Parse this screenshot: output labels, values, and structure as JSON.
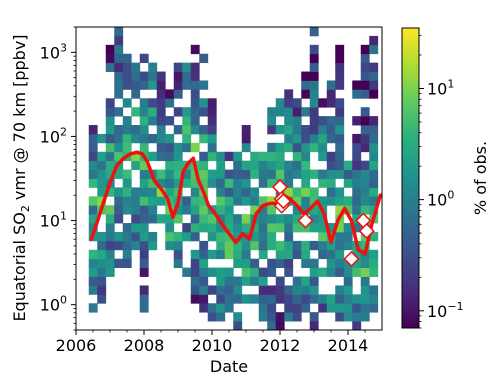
{
  "chart_data": {
    "type": "heatmap",
    "xlabel": "Date",
    "ylabel": "Equatorial SO₂ vmr @ 70 km [ppbv]",
    "xlim": [
      2006.0,
      2015.0
    ],
    "ylim": [
      0.5,
      2000
    ],
    "yscale": "log",
    "x_ticks": [
      {
        "value": 2006,
        "label": "2006"
      },
      {
        "value": 2008,
        "label": "2008"
      },
      {
        "value": 2010,
        "label": "2010"
      },
      {
        "value": 2012,
        "label": "2012"
      },
      {
        "value": 2014,
        "label": "2014"
      }
    ],
    "y_ticks": [
      {
        "value": 1,
        "base": "10",
        "exp": "0"
      },
      {
        "value": 10,
        "base": "10",
        "exp": "1"
      },
      {
        "value": 100,
        "base": "10",
        "exp": "2"
      },
      {
        "value": 1000,
        "base": "10",
        "exp": "3"
      }
    ],
    "colorbar": {
      "label": "% of obs.",
      "scale": "log",
      "range": [
        0.07,
        35
      ],
      "colormap": "viridis",
      "ticks": [
        {
          "value": 0.1,
          "base": "10",
          "exp": "−1"
        },
        {
          "value": 1,
          "base": "10",
          "exp": "0"
        },
        {
          "value": 10,
          "base": "10",
          "exp": "1"
        }
      ]
    },
    "histogram": {
      "description_of_bins": "2D histogram of observations; time bins ~0.25 yr, log-spaced vmr bins",
      "x_start": 2006.4,
      "x_end": 2014.9,
      "active_columns": [
        {
          "x": 2006.5,
          "low": 0.8,
          "high": 150
        },
        {
          "x": 2006.75,
          "low": 1.0,
          "high": 100
        },
        {
          "x": 2007.0,
          "low": 2.0,
          "high": 1300
        },
        {
          "x": 2007.25,
          "low": 2.5,
          "high": 2000
        },
        {
          "x": 2007.5,
          "low": 3.0,
          "high": 1000
        },
        {
          "x": 2007.75,
          "low": 5.0,
          "high": 700
        },
        {
          "x": 2008.0,
          "low": 0.8,
          "high": 1000
        },
        {
          "x": 2008.25,
          "low": 4.0,
          "high": 900
        },
        {
          "x": 2008.5,
          "low": 10.0,
          "high": 600
        },
        {
          "x": 2008.75,
          "low": 5.0,
          "high": 400
        },
        {
          "x": 2009.0,
          "low": 3.0,
          "high": 700
        },
        {
          "x": 2009.25,
          "low": 2.0,
          "high": 800
        },
        {
          "x": 2009.5,
          "low": 1.0,
          "high": 1300
        },
        {
          "x": 2009.75,
          "low": 0.8,
          "high": 900
        },
        {
          "x": 2010.0,
          "low": 0.6,
          "high": 300
        },
        {
          "x": 2010.25,
          "low": 0.7,
          "high": 70
        },
        {
          "x": 2010.5,
          "low": 0.6,
          "high": 60
        },
        {
          "x": 2010.75,
          "low": 0.5,
          "high": 70
        },
        {
          "x": 2011.0,
          "low": 0.8,
          "high": 150
        },
        {
          "x": 2011.25,
          "low": 1.0,
          "high": 70
        },
        {
          "x": 2011.5,
          "low": 0.6,
          "high": 70
        },
        {
          "x": 2011.75,
          "low": 0.5,
          "high": 300
        },
        {
          "x": 2012.0,
          "low": 0.5,
          "high": 300
        },
        {
          "x": 2012.25,
          "low": 0.6,
          "high": 400
        },
        {
          "x": 2012.5,
          "low": 0.7,
          "high": 300
        },
        {
          "x": 2012.75,
          "low": 0.8,
          "high": 600
        },
        {
          "x": 2013.0,
          "low": 0.5,
          "high": 2000
        },
        {
          "x": 2013.25,
          "low": 0.6,
          "high": 300
        },
        {
          "x": 2013.5,
          "low": 0.6,
          "high": 500
        },
        {
          "x": 2013.75,
          "low": 0.7,
          "high": 1300
        },
        {
          "x": 2014.0,
          "low": 0.6,
          "high": 60
        },
        {
          "x": 2014.25,
          "low": 0.5,
          "high": 500
        },
        {
          "x": 2014.5,
          "low": 0.5,
          "high": 1300
        },
        {
          "x": 2014.75,
          "low": 0.8,
          "high": 1500
        }
      ],
      "peak_pct": 35
    },
    "series": [
      {
        "style": "line",
        "color": "#ee1111",
        "x": [
          2006.45,
          2006.6,
          2006.8,
          2007.0,
          2007.2,
          2007.4,
          2007.6,
          2007.8,
          2007.95,
          2008.1,
          2008.3,
          2008.5,
          2008.7,
          2008.85,
          2009.0,
          2009.15,
          2009.3,
          2009.45,
          2009.6,
          2009.75,
          2009.9,
          2010.1,
          2010.3,
          2010.5,
          2010.7,
          2010.9,
          2011.1,
          2011.3,
          2011.5,
          2011.7,
          2011.9,
          2012.1,
          2012.3,
          2012.5,
          2012.7,
          2012.9,
          2013.1,
          2013.3,
          2013.5,
          2013.7,
          2013.9,
          2014.1,
          2014.3,
          2014.5,
          2014.7,
          2014.95
        ],
        "values": [
          6,
          9,
          16,
          28,
          45,
          55,
          62,
          65,
          62,
          50,
          30,
          24,
          18,
          11,
          16,
          38,
          48,
          55,
          30,
          22,
          15,
          12,
          9,
          7,
          5.5,
          7,
          6,
          12,
          15,
          16,
          16,
          20,
          18,
          15,
          12,
          14,
          17,
          12,
          5.5,
          10,
          14,
          10,
          4.5,
          4.0,
          9,
          20
        ]
      },
      {
        "style": "diamond-markers",
        "x": [
          2012.0,
          2012.05,
          2012.05,
          2012.1,
          2012.75,
          2014.1,
          2014.45,
          2014.55
        ],
        "values": [
          25,
          18,
          15,
          17,
          10,
          3.5,
          10,
          7.5
        ]
      }
    ]
  }
}
